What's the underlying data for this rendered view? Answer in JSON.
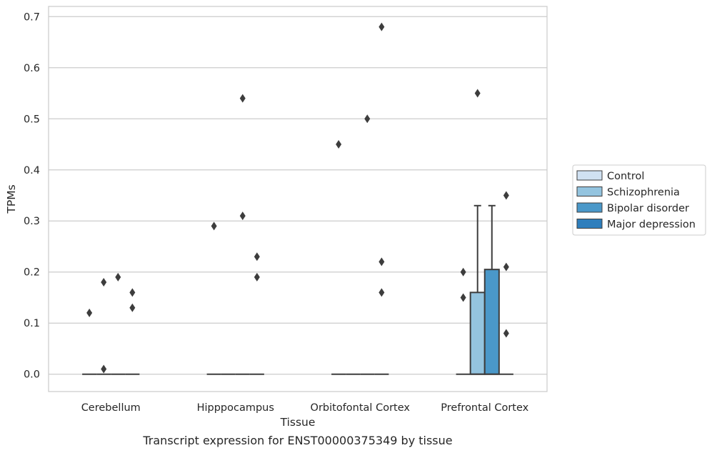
{
  "chart_data": {
    "type": "box",
    "caption": "Transcript expression for ENST00000375349 by tissue",
    "xlabel": "Tissue",
    "ylabel": "TPMs",
    "ylim": [
      -0.034,
      0.72
    ],
    "yticks": [
      0.0,
      0.1,
      0.2,
      0.3,
      0.4,
      0.5,
      0.6,
      0.7
    ],
    "ytick_labels": [
      "0.0",
      "0.1",
      "0.2",
      "0.3",
      "0.4",
      "0.5",
      "0.6",
      "0.7"
    ],
    "grid": "horizontal",
    "legend_position": "right",
    "categories": [
      "Cerebellum",
      "Hipppocampus",
      "Orbitofontal Cortex",
      "Prefrontal Cortex"
    ],
    "series": [
      {
        "name": "Control",
        "color": "#d0e1f2",
        "boxes": [
          {
            "q1": 0,
            "median": 0,
            "q3": 0,
            "whisker_low": 0,
            "whisker_high": 0,
            "outliers": [
              0.12
            ]
          },
          {
            "q1": 0,
            "median": 0,
            "q3": 0,
            "whisker_low": 0,
            "whisker_high": 0,
            "outliers": [
              0.29
            ]
          },
          {
            "q1": 0,
            "median": 0,
            "q3": 0,
            "whisker_low": 0,
            "whisker_high": 0,
            "outliers": [
              0.45
            ]
          },
          {
            "q1": 0,
            "median": 0,
            "q3": 0,
            "whisker_low": 0,
            "whisker_high": 0,
            "outliers": [
              0.2,
              0.15
            ]
          }
        ]
      },
      {
        "name": "Schizophrenia",
        "color": "#94c4df",
        "boxes": [
          {
            "q1": 0,
            "median": 0,
            "q3": 0,
            "whisker_low": 0,
            "whisker_high": 0,
            "outliers": [
              0.18,
              0.01
            ]
          },
          {
            "q1": 0,
            "median": 0,
            "q3": 0,
            "whisker_low": 0,
            "whisker_high": 0,
            "outliers": []
          },
          {
            "q1": 0,
            "median": 0,
            "q3": 0,
            "whisker_low": 0,
            "whisker_high": 0,
            "outliers": []
          },
          {
            "q1": 0,
            "median": 0,
            "q3": 0.16,
            "whisker_low": 0,
            "whisker_high": 0.33,
            "outliers": [
              0.55
            ]
          }
        ]
      },
      {
        "name": "Bipolar disorder",
        "color": "#4a98c9",
        "boxes": [
          {
            "q1": 0,
            "median": 0,
            "q3": 0,
            "whisker_low": 0,
            "whisker_high": 0,
            "outliers": [
              0.19
            ]
          },
          {
            "q1": 0,
            "median": 0,
            "q3": 0,
            "whisker_low": 0,
            "whisker_high": 0,
            "outliers": [
              0.54,
              0.31
            ]
          },
          {
            "q1": 0,
            "median": 0,
            "q3": 0,
            "whisker_low": 0,
            "whisker_high": 0,
            "outliers": [
              0.5
            ]
          },
          {
            "q1": 0,
            "median": 0,
            "q3": 0.205,
            "whisker_low": 0,
            "whisker_high": 0.33,
            "outliers": []
          }
        ]
      },
      {
        "name": "Major depression",
        "color": "#2e7ebc",
        "boxes": [
          {
            "q1": 0,
            "median": 0,
            "q3": 0,
            "whisker_low": 0,
            "whisker_high": 0,
            "outliers": [
              0.16,
              0.13
            ]
          },
          {
            "q1": 0,
            "median": 0,
            "q3": 0,
            "whisker_low": 0,
            "whisker_high": 0,
            "outliers": [
              0.23,
              0.19
            ]
          },
          {
            "q1": 0,
            "median": 0,
            "q3": 0,
            "whisker_low": 0,
            "whisker_high": 0,
            "outliers": [
              0.68,
              0.22,
              0.16
            ]
          },
          {
            "q1": 0,
            "median": 0,
            "q3": 0,
            "whisker_low": 0,
            "whisker_high": 0,
            "outliers": [
              0.35,
              0.21,
              0.08
            ]
          }
        ]
      }
    ]
  }
}
